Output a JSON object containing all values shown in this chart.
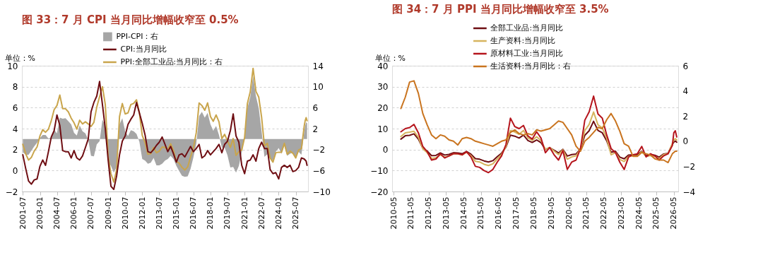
{
  "chart_data": [
    {
      "type": "line",
      "title": "图 33：7 月 CPI 当月同比增幅收窄至 0.5%",
      "ylabel": "单位：%",
      "x": [
        "2001-07",
        "2001-10",
        "2002-01",
        "2002-04",
        "2002-07",
        "2002-10",
        "2003-01",
        "2003-04",
        "2003-07",
        "2003-10",
        "2004-01",
        "2004-04",
        "2004-07",
        "2004-10",
        "2005-01",
        "2005-04",
        "2005-07",
        "2005-10",
        "2006-01",
        "2006-04",
        "2006-07",
        "2006-10",
        "2007-01",
        "2007-04",
        "2007-07",
        "2007-10",
        "2008-01",
        "2008-04",
        "2008-07",
        "2008-10",
        "2009-01",
        "2009-04",
        "2009-07",
        "2009-10",
        "2010-01",
        "2010-04",
        "2010-07",
        "2010-10",
        "2011-01",
        "2011-04",
        "2011-07",
        "2011-10",
        "2012-01",
        "2012-04",
        "2012-07",
        "2012-10",
        "2013-01",
        "2013-04",
        "2013-07",
        "2013-10",
        "2014-01",
        "2014-04",
        "2014-07",
        "2014-10",
        "2015-01",
        "2015-04",
        "2015-07",
        "2015-10",
        "2016-01",
        "2016-04",
        "2016-07",
        "2016-10",
        "2017-01",
        "2017-04",
        "2017-07",
        "2017-10",
        "2018-01",
        "2018-04",
        "2018-07",
        "2018-10",
        "2019-01",
        "2019-04",
        "2019-07",
        "2019-10",
        "2020-01",
        "2020-04",
        "2020-07",
        "2020-10",
        "2021-01",
        "2021-04",
        "2021-07",
        "2021-10",
        "2022-01",
        "2022-04",
        "2022-07",
        "2022-10",
        "2023-01",
        "2023-04",
        "2023-07",
        "2023-10",
        "2024-01",
        "2024-04",
        "2024-07",
        "2024-10",
        "2025-01",
        "2025-04",
        "2025-07",
        "2025-10",
        "2026-01",
        "2026-04",
        "2026-05",
        "2026-06",
        "2026-07"
      ],
      "xlim": [
        "2001-06",
        "2026-08"
      ],
      "xticks": [
        "2001-07",
        "2003-01",
        "2004-07",
        "2006-01",
        "2007-07",
        "2009-01",
        "2010-07",
        "2012-01",
        "2013-07",
        "2015-01",
        "2016-07",
        "2018-01",
        "2019-07",
        "2021-01",
        "2022-07",
        "2024-01",
        "2025-07"
      ],
      "ylim": [
        -2,
        10
      ],
      "yticks": [
        -2,
        0,
        2,
        4,
        6,
        8,
        10
      ],
      "y2lim": [
        -10,
        14
      ],
      "y2ticks": [
        -10,
        -6,
        -2,
        2,
        6,
        10,
        14
      ],
      "grid": "y",
      "legend": "top",
      "series": [
        {
          "name": "PPI-CPI：右",
          "type": "area",
          "axis": "y2",
          "color": "#a6a6a6",
          "values": [
            -2.5,
            -3.0,
            -3.0,
            -2.2,
            -1.4,
            -0.7,
            0.2,
            0.8,
            0.8,
            0.1,
            0.3,
            1.8,
            1.1,
            4.1,
            3.9,
            4.0,
            3.4,
            2.8,
            1.2,
            0.7,
            2.6,
            1.5,
            1.1,
            -0.1,
            -3.2,
            -3.3,
            -1.0,
            -0.4,
            3.7,
            2.6,
            -4.3,
            -5.1,
            -6.4,
            -5.3,
            2.8,
            4.0,
            1.5,
            0.6,
            1.7,
            1.5,
            1.0,
            -0.5,
            -3.8,
            -4.1,
            -4.7,
            -4.5,
            -3.6,
            -5.0,
            -5.0,
            -4.7,
            -4.1,
            -3.8,
            -3.2,
            -3.8,
            -5.1,
            -6.1,
            -7.0,
            -7.2,
            -7.1,
            -5.7,
            -3.5,
            -0.9,
            4.4,
            5.2,
            4.1,
            5.0,
            2.8,
            1.6,
            2.5,
            0.8,
            -1.6,
            -1.6,
            -3.1,
            -5.4,
            -5.3,
            -6.4,
            -5.1,
            -2.6,
            0.6,
            5.9,
            8.0,
            12.0,
            8.2,
            5.9,
            1.5,
            -3.4,
            -2.9,
            -3.7,
            -4.1,
            -2.4,
            -1.7,
            -2.8,
            -1.3,
            -3.2,
            -2.8,
            -2.6,
            -3.6,
            -2.4,
            -3.0,
            1.4,
            2.5,
            3.2,
            3.0
          ]
        },
        {
          "name": "CPI:当月同比",
          "type": "line",
          "axis": "y",
          "color": "#6e0d12",
          "values": [
            1.5,
            0.2,
            -1.0,
            -1.3,
            -0.9,
            -0.8,
            0.4,
            1.0,
            0.5,
            1.8,
            3.2,
            3.8,
            5.3,
            4.3,
            1.9,
            1.8,
            1.8,
            1.2,
            1.9,
            1.2,
            1.0,
            1.4,
            2.2,
            3.0,
            5.6,
            6.5,
            7.1,
            8.5,
            6.3,
            4.0,
            1.0,
            -1.5,
            -1.8,
            -0.5,
            1.5,
            2.8,
            3.3,
            4.4,
            4.9,
            5.3,
            6.5,
            5.5,
            4.5,
            3.4,
            1.8,
            1.7,
            2.0,
            2.4,
            2.7,
            3.2,
            2.5,
            1.8,
            2.3,
            1.6,
            0.8,
            1.5,
            1.6,
            1.3,
            1.8,
            2.3,
            1.8,
            2.1,
            2.5,
            1.2,
            1.4,
            1.9,
            1.5,
            1.8,
            2.1,
            2.5,
            1.7,
            2.5,
            2.8,
            3.8,
            5.4,
            3.3,
            2.7,
            0.5,
            -0.3,
            0.9,
            1.0,
            1.5,
            0.9,
            2.1,
            2.7,
            2.1,
            2.1,
            0.1,
            -0.3,
            -0.2,
            -0.8,
            0.3,
            0.5,
            0.3,
            0.5,
            -0.1,
            0.0,
            0.3,
            1.2,
            1.1,
            1.0,
            0.9,
            0.5
          ]
        },
        {
          "name": "PPI:全部工业品:当月同比：右",
          "type": "line",
          "axis": "y2",
          "color": "#c9a54c",
          "values": [
            -1.0,
            -2.8,
            -4.0,
            -3.5,
            -2.3,
            -1.5,
            0.6,
            1.8,
            1.3,
            1.9,
            3.5,
            5.6,
            6.4,
            8.4,
            5.8,
            5.8,
            5.2,
            4.0,
            3.1,
            1.9,
            3.6,
            2.9,
            3.3,
            2.9,
            2.4,
            3.2,
            6.1,
            8.1,
            10.0,
            6.6,
            -3.3,
            -6.6,
            -8.2,
            -5.8,
            4.3,
            6.8,
            4.8,
            5.0,
            6.6,
            6.8,
            7.5,
            5.0,
            0.7,
            -0.7,
            -2.9,
            -2.8,
            -1.6,
            -2.6,
            -2.3,
            -1.5,
            -1.6,
            -2.0,
            -0.9,
            -2.2,
            -4.3,
            -4.6,
            -5.4,
            -5.9,
            -5.3,
            -3.4,
            -1.7,
            1.2,
            6.9,
            6.4,
            5.5,
            6.9,
            4.3,
            3.4,
            4.6,
            3.3,
            0.1,
            0.9,
            -0.3,
            -1.6,
            0.1,
            -3.1,
            -2.4,
            -2.1,
            0.3,
            6.8,
            9.0,
            13.5,
            9.1,
            8.0,
            4.2,
            -1.3,
            -0.8,
            -3.6,
            -4.4,
            -2.6,
            -2.5,
            -2.5,
            -0.8,
            -2.9,
            -2.3,
            -2.7,
            -3.6,
            -2.1,
            -1.8,
            2.5,
            3.5,
            4.1,
            3.5
          ]
        }
      ]
    },
    {
      "type": "line",
      "title": "图 34：7 月 PPI 当月同比增幅收窄至 3.5%",
      "ylabel": "单位：%",
      "x": [
        "2010-10",
        "2011-01",
        "2011-04",
        "2011-07",
        "2011-10",
        "2012-01",
        "2012-04",
        "2012-07",
        "2012-10",
        "2013-01",
        "2013-04",
        "2013-07",
        "2013-10",
        "2014-01",
        "2014-04",
        "2014-07",
        "2014-10",
        "2015-01",
        "2015-04",
        "2015-07",
        "2015-10",
        "2016-01",
        "2016-04",
        "2016-07",
        "2016-10",
        "2017-01",
        "2017-04",
        "2017-07",
        "2017-10",
        "2018-01",
        "2018-04",
        "2018-07",
        "2018-10",
        "2019-01",
        "2019-04",
        "2019-07",
        "2019-10",
        "2020-01",
        "2020-04",
        "2020-07",
        "2020-10",
        "2021-01",
        "2021-04",
        "2021-07",
        "2021-10",
        "2022-01",
        "2022-04",
        "2022-07",
        "2022-10",
        "2023-01",
        "2023-04",
        "2023-07",
        "2023-10",
        "2024-01",
        "2024-04",
        "2024-07",
        "2024-10",
        "2025-01",
        "2025-04",
        "2025-07",
        "2025-10",
        "2026-01",
        "2026-04",
        "2026-05",
        "2026-06",
        "2026-07"
      ],
      "xlim": [
        "2010-04",
        "2026-08"
      ],
      "xticks": [
        "2010-05",
        "2011-05",
        "2012-05",
        "2013-05",
        "2014-05",
        "2015-05",
        "2016-05",
        "2017-05",
        "2018-05",
        "2019-05",
        "2020-05",
        "2021-05",
        "2022-05",
        "2023-05",
        "2024-05",
        "2025-05",
        "2026-05"
      ],
      "ylim": [
        -20,
        40
      ],
      "yticks": [
        -20,
        -10,
        0,
        10,
        20,
        30,
        40
      ],
      "y2lim": [
        -4,
        6
      ],
      "y2ticks": [
        -4,
        -2,
        0,
        2,
        4,
        6
      ],
      "grid": "y",
      "legend": "top",
      "series": [
        {
          "name": "全部工业品:当月同比",
          "type": "line",
          "axis": "y",
          "color": "#6e0d12",
          "values": [
            5.0,
            6.6,
            6.8,
            7.5,
            5.0,
            0.7,
            -0.7,
            -2.9,
            -2.8,
            -1.6,
            -2.6,
            -2.3,
            -1.5,
            -1.6,
            -2.0,
            -0.9,
            -2.2,
            -4.3,
            -4.6,
            -5.4,
            -5.9,
            -5.3,
            -3.4,
            -1.7,
            1.2,
            6.9,
            6.4,
            5.5,
            6.9,
            4.3,
            3.4,
            4.6,
            3.3,
            0.1,
            0.9,
            -0.3,
            -1.6,
            0.1,
            -3.1,
            -2.4,
            -2.1,
            0.3,
            6.8,
            9.0,
            13.5,
            9.1,
            8.0,
            4.2,
            -1.3,
            -0.8,
            -3.6,
            -4.4,
            -2.6,
            -2.5,
            -2.5,
            -0.8,
            -2.9,
            -2.3,
            -2.7,
            -3.6,
            -2.1,
            -1.8,
            2.5,
            3.5,
            4.1,
            3.5
          ]
        },
        {
          "name": "生产资料:当月同比",
          "type": "line",
          "axis": "y",
          "color": "#d6b45e",
          "values": [
            6.2,
            8.0,
            8.3,
            8.7,
            5.9,
            0.4,
            -1.5,
            -4.2,
            -3.9,
            -2.5,
            -3.6,
            -3.1,
            -2.0,
            -2.1,
            -2.6,
            -1.3,
            -2.9,
            -5.6,
            -5.9,
            -7.0,
            -7.6,
            -6.8,
            -4.5,
            -2.3,
            1.5,
            9.1,
            8.4,
            7.3,
            9.1,
            5.6,
            4.4,
            6.1,
            4.3,
            0.1,
            1.0,
            -0.7,
            -2.4,
            -0.1,
            -4.6,
            -3.5,
            -3.0,
            0.3,
            9.1,
            12.0,
            17.9,
            11.8,
            10.3,
            5.4,
            -2.5,
            -1.4,
            -4.7,
            -5.7,
            -3.3,
            -3.0,
            -3.1,
            -1.0,
            -3.3,
            -2.8,
            -3.3,
            -4.3,
            -2.4,
            -2.0,
            3.0,
            4.5,
            5.2,
            4.5
          ]
        },
        {
          "name": "原材料工业:当月同比",
          "type": "line",
          "axis": "y",
          "color": "#b5141c",
          "values": [
            8.5,
            10.0,
            10.5,
            12.0,
            8.0,
            1.5,
            -1.0,
            -5.0,
            -4.5,
            -2.0,
            -4.0,
            -3.0,
            -2.0,
            -2.0,
            -2.5,
            -1.0,
            -3.5,
            -8.0,
            -8.5,
            -10.0,
            -11.0,
            -9.5,
            -6.0,
            -3.0,
            2.5,
            15.0,
            11.0,
            10.0,
            11.5,
            6.5,
            5.0,
            8.5,
            5.5,
            -1.5,
            1.0,
            -2.5,
            -5.0,
            -0.5,
            -9.5,
            -6.0,
            -5.0,
            0.5,
            14.0,
            18.0,
            25.5,
            17.0,
            15.0,
            7.0,
            0.5,
            -1.5,
            -6.0,
            -9.5,
            -3.5,
            -2.5,
            -2.0,
            1.5,
            -3.5,
            -2.0,
            -3.0,
            -5.0,
            -3.0,
            -2.0,
            2.0,
            8.0,
            9.0,
            6.0
          ]
        },
        {
          "name": "生活资料:当月同比：右",
          "type": "line",
          "axis": "y2",
          "color": "#c9741f",
          "values": [
            2.6,
            3.5,
            4.7,
            4.8,
            3.8,
            2.2,
            1.3,
            0.5,
            0.2,
            0.5,
            0.4,
            0.1,
            0.0,
            -0.3,
            0.2,
            0.3,
            0.2,
            0.0,
            -0.1,
            -0.2,
            -0.3,
            -0.4,
            -0.2,
            0.0,
            0.1,
            0.7,
            0.9,
            0.6,
            0.5,
            0.6,
            0.5,
            0.9,
            0.8,
            0.9,
            1.0,
            1.3,
            1.6,
            1.5,
            1.0,
            0.5,
            -0.4,
            -0.8,
            0.0,
            0.3,
            0.7,
            1.1,
            1.0,
            1.7,
            2.2,
            1.6,
            0.8,
            -0.2,
            -0.4,
            -1.2,
            -1.2,
            -0.9,
            -1.0,
            -1.1,
            -1.4,
            -1.5,
            -1.5,
            -1.7,
            -1.0,
            -0.9,
            -0.8,
            -0.8
          ]
        }
      ]
    }
  ]
}
